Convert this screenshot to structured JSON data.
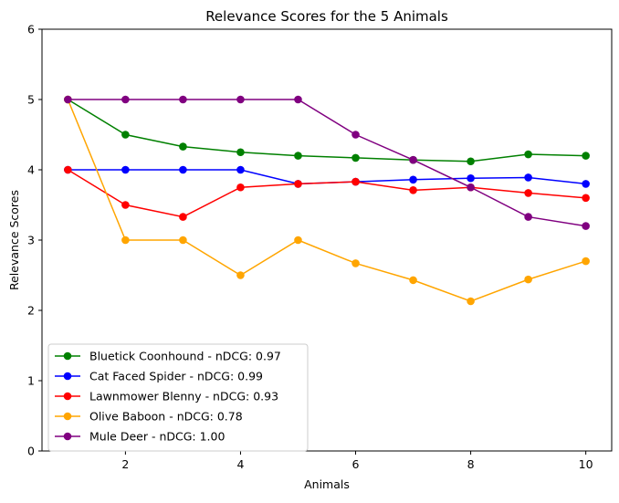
{
  "chart_data": {
    "type": "line",
    "title": "Relevance Scores for the 5 Animals",
    "xlabel": "Animals",
    "ylabel": "Relevance Scores",
    "x": [
      1,
      2,
      3,
      4,
      5,
      6,
      7,
      8,
      9,
      10
    ],
    "xlim": [
      0.55,
      10.45
    ],
    "ylim": [
      0,
      6
    ],
    "xticks": [
      2,
      4,
      6,
      8,
      10
    ],
    "yticks": [
      0,
      1,
      2,
      3,
      4,
      5,
      6
    ],
    "grid": false,
    "legend_position": "lower-left",
    "series": [
      {
        "name": "Bluetick Coonhound - nDCG: 0.97",
        "color": "#008000",
        "values": [
          5.0,
          4.5,
          4.33,
          4.25,
          4.2,
          4.17,
          4.14,
          4.12,
          4.22,
          4.2
        ]
      },
      {
        "name": "Cat Faced Spider - nDCG: 0.99",
        "color": "#0000ff",
        "values": [
          4.0,
          4.0,
          4.0,
          4.0,
          3.8,
          3.83,
          3.86,
          3.88,
          3.89,
          3.8
        ]
      },
      {
        "name": "Lawnmower Blenny - nDCG: 0.93",
        "color": "#ff0000",
        "values": [
          4.0,
          3.5,
          3.33,
          3.75,
          3.8,
          3.83,
          3.71,
          3.75,
          3.67,
          3.6
        ]
      },
      {
        "name": "Olive Baboon - nDCG: 0.78",
        "color": "#ffa500",
        "values": [
          5.0,
          3.0,
          3.0,
          2.5,
          3.0,
          2.67,
          2.43,
          2.13,
          2.44,
          2.7
        ]
      },
      {
        "name": "Mule Deer - nDCG: 1.00",
        "color": "#800080",
        "values": [
          5.0,
          5.0,
          5.0,
          5.0,
          5.0,
          4.5,
          4.14,
          3.75,
          3.33,
          3.2
        ]
      }
    ]
  }
}
